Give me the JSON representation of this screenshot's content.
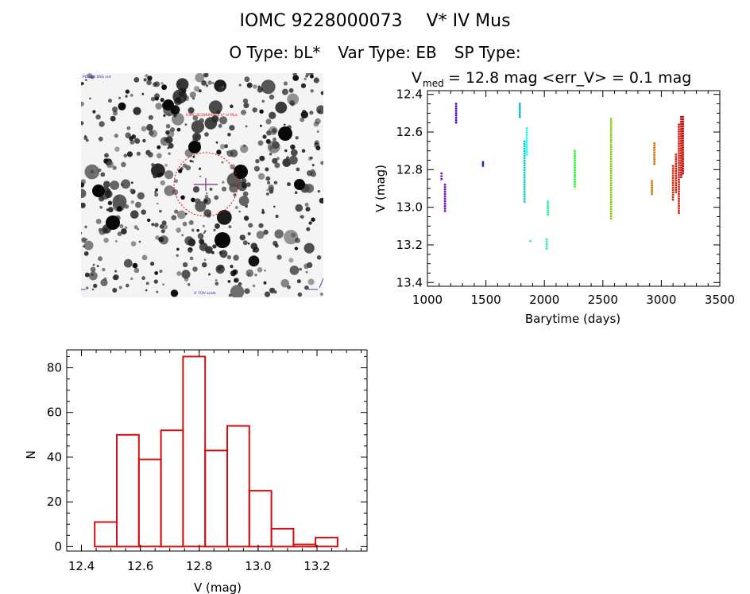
{
  "header": {
    "object_id": "IOMC 9228000073",
    "star_name": "V* IV Mus",
    "o_type": "O Type: bL*",
    "var_type": "Var Type: EB",
    "sp_type": "SP Type:"
  },
  "thumbnail": {
    "label_top_left": "POSS-II DSS red",
    "label_catalog": "IOMC 9228000073 V* IV Mus",
    "label_bottom_center": "4' FOV scale"
  },
  "chart_data": [
    {
      "type": "scatter",
      "title_main": "V",
      "title_sub": "med",
      "title_rest": "= 12.8 mag <err_V> = 0.1 mag",
      "xlabel": "Barytime (days)",
      "ylabel": "V (mag)",
      "xlim": [
        1000,
        3500
      ],
      "ylim": [
        13.42,
        12.38
      ],
      "xticks": [
        "1000",
        "1500",
        "2000",
        "2500",
        "3000",
        "3500"
      ],
      "yticks": [
        "12.4",
        "12.6",
        "12.8",
        "13.0",
        "13.2",
        "13.4"
      ],
      "colormap": "time (purple to red)",
      "groups": [
        {
          "x": 1120,
          "ymin": 12.82,
          "ymax": 12.85
        },
        {
          "x": 1150,
          "ymin": 12.88,
          "ymax": 13.02
        },
        {
          "x": 1245,
          "ymin": 12.45,
          "ymax": 12.55
        },
        {
          "x": 1475,
          "ymin": 12.76,
          "ymax": 12.78
        },
        {
          "x": 1790,
          "ymin": 12.45,
          "ymax": 12.52
        },
        {
          "x": 1830,
          "ymin": 12.65,
          "ymax": 12.97
        },
        {
          "x": 1850,
          "ymin": 12.58,
          "ymax": 12.72
        },
        {
          "x": 1880,
          "ymin": 13.18,
          "ymax": 13.18
        },
        {
          "x": 2020,
          "ymin": 13.17,
          "ymax": 13.22
        },
        {
          "x": 2030,
          "ymin": 12.97,
          "ymax": 13.04
        },
        {
          "x": 2260,
          "ymin": 12.7,
          "ymax": 12.89
        },
        {
          "x": 2570,
          "ymin": 12.53,
          "ymax": 13.06
        },
        {
          "x": 2920,
          "ymin": 12.86,
          "ymax": 12.93
        },
        {
          "x": 2940,
          "ymin": 12.66,
          "ymax": 12.77
        },
        {
          "x": 3100,
          "ymin": 12.78,
          "ymax": 12.96
        },
        {
          "x": 3125,
          "ymin": 12.72,
          "ymax": 12.92
        },
        {
          "x": 3150,
          "ymin": 12.56,
          "ymax": 13.03
        },
        {
          "x": 3170,
          "ymin": 12.52,
          "ymax": 12.84
        },
        {
          "x": 3185,
          "ymin": 12.52,
          "ymax": 12.82
        }
      ]
    },
    {
      "type": "bar",
      "subtype": "histogram",
      "xlabel": "V (mag)",
      "ylabel": "N",
      "xlim": [
        12.35,
        13.37
      ],
      "ylim": [
        -2,
        88
      ],
      "xticks": [
        "12.4",
        "12.6",
        "12.8",
        "13.0",
        "13.2"
      ],
      "yticks": [
        "0",
        "20",
        "40",
        "60",
        "80"
      ],
      "bin_edges": [
        12.445,
        12.52,
        12.595,
        12.67,
        12.745,
        12.82,
        12.895,
        12.97,
        13.045,
        13.12,
        13.195,
        13.27
      ],
      "values": [
        11,
        50,
        39,
        52,
        85,
        43,
        54,
        25,
        8,
        1,
        4
      ],
      "color": "#d01010"
    }
  ]
}
